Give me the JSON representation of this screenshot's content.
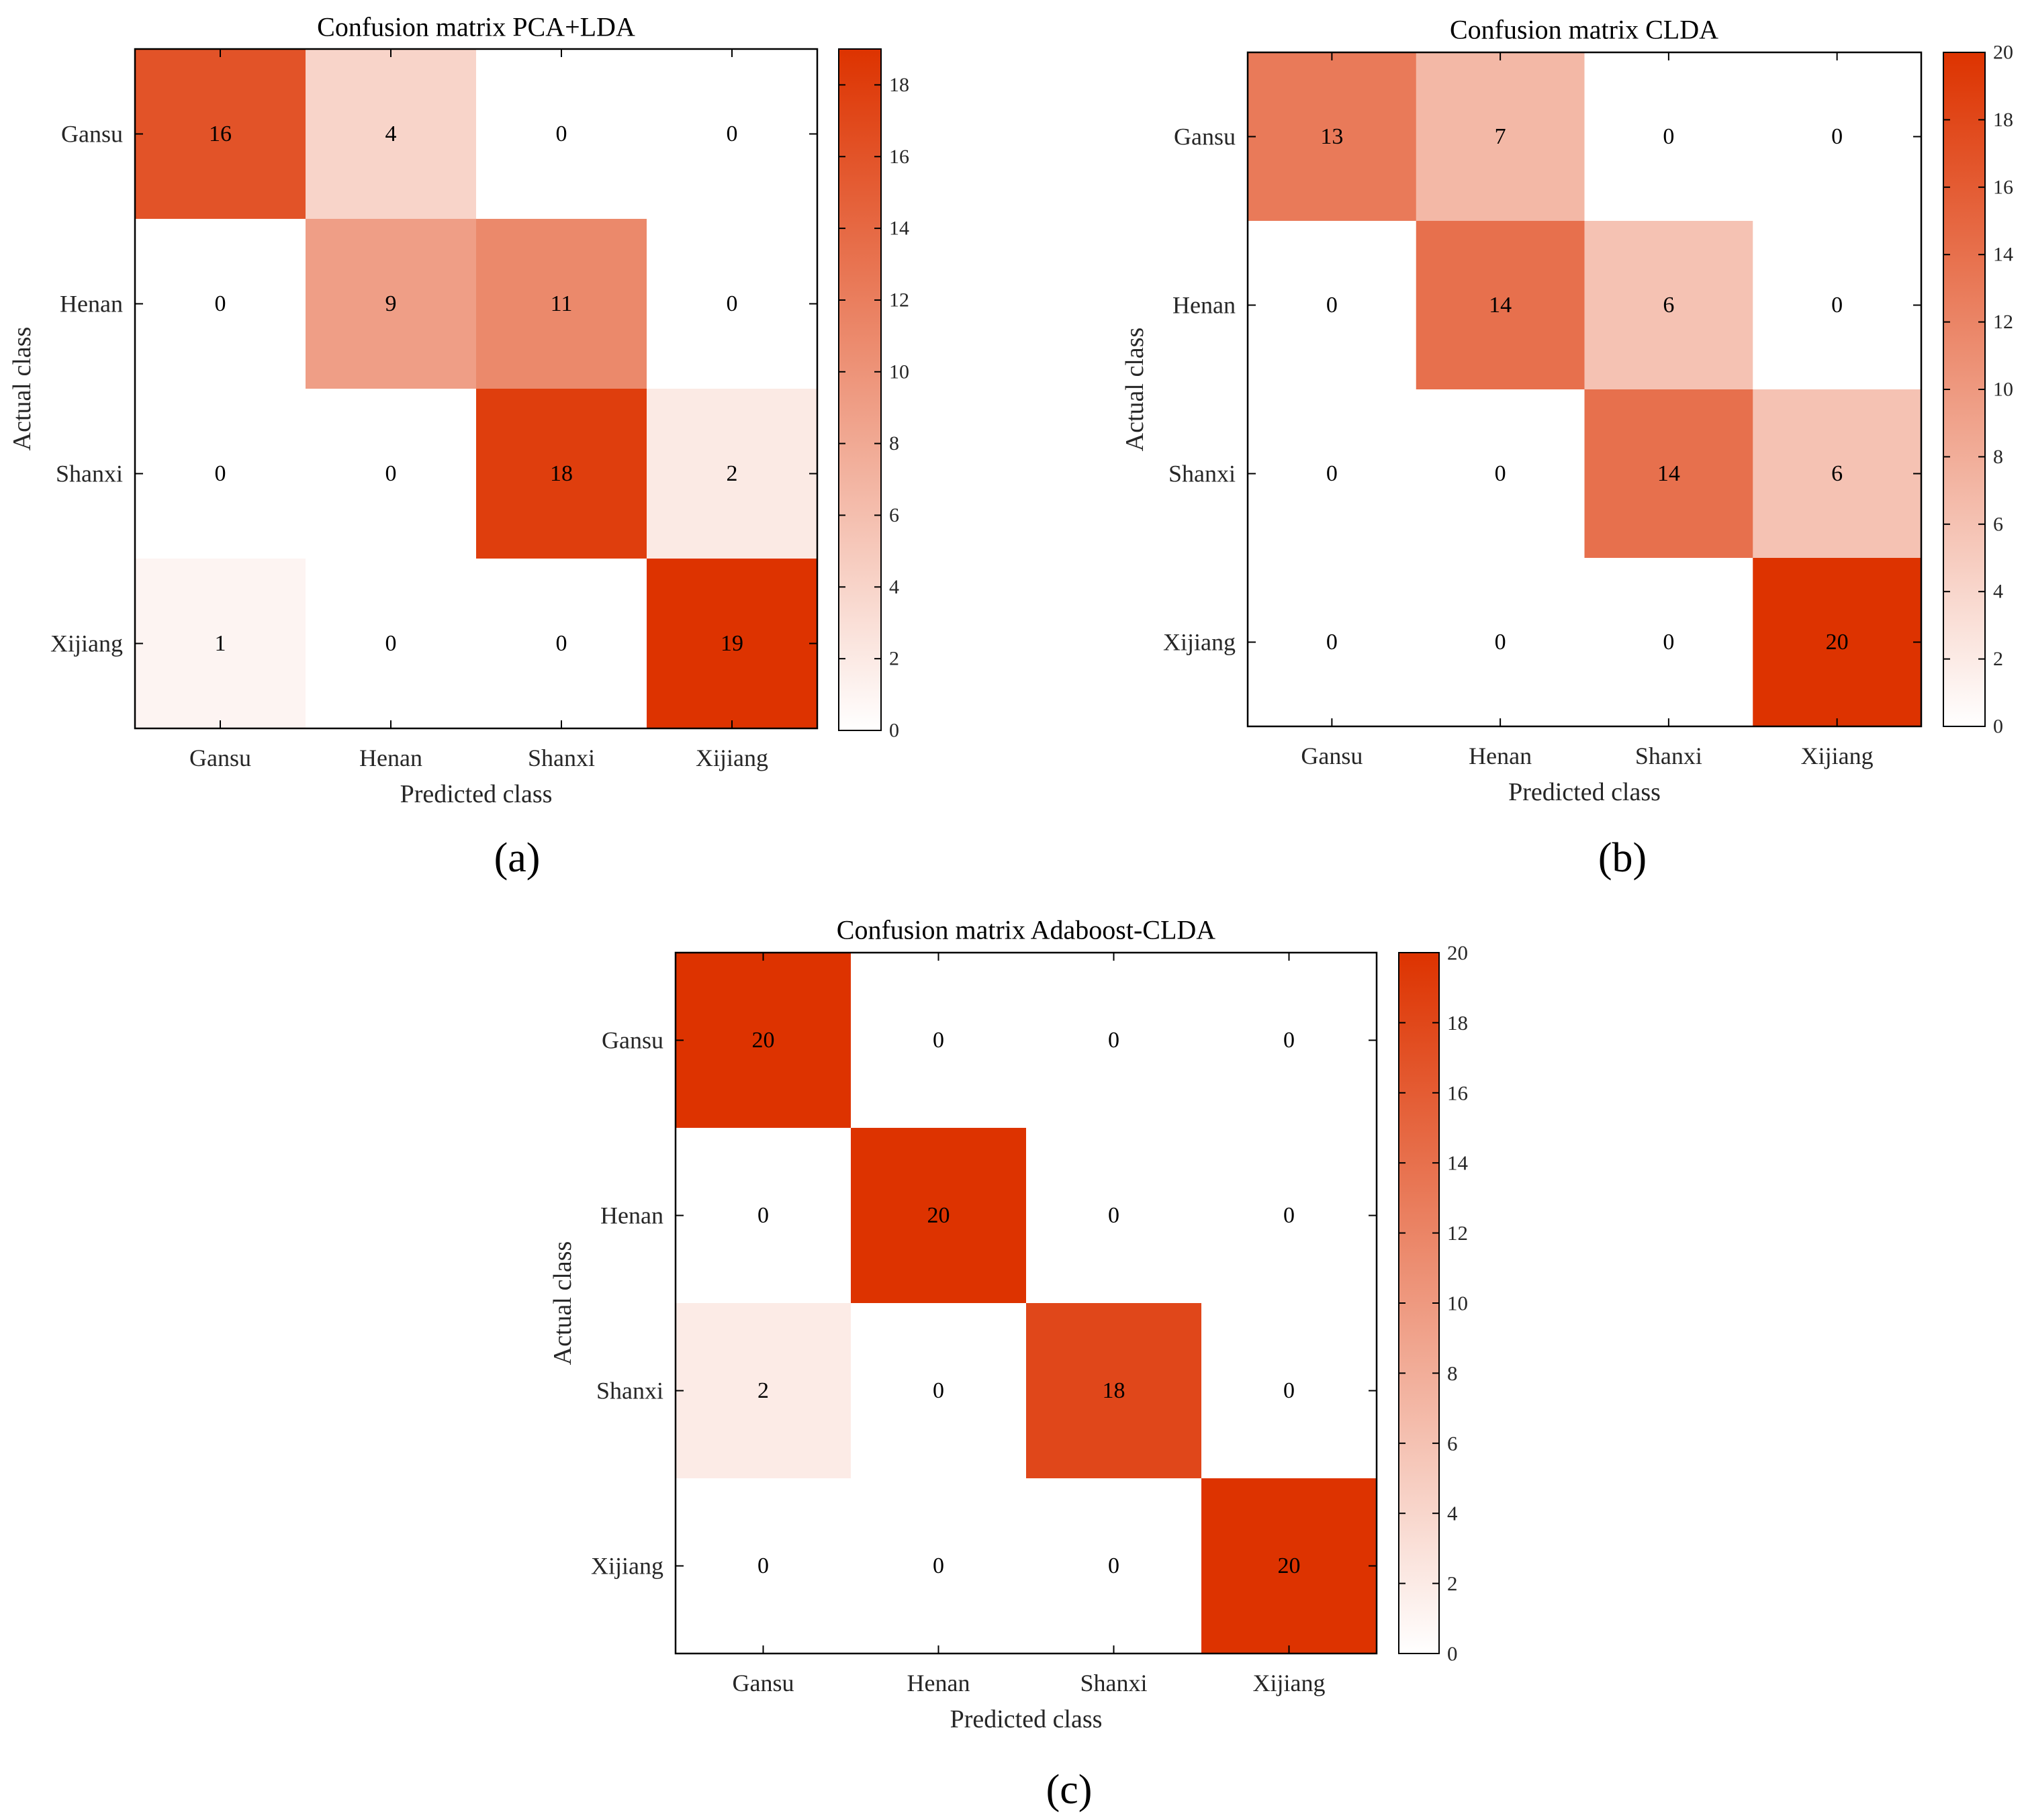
{
  "chart_data": [
    {
      "type": "heatmap",
      "title": "Confusion matrix PCA+LDA",
      "panel_label": "(a)",
      "xlabel": "Predicted class",
      "ylabel": "Actual class",
      "x_categories": [
        "Gansu",
        "Henan",
        "Shanxi",
        "Xijiang"
      ],
      "y_categories": [
        "Gansu",
        "Henan",
        "Shanxi",
        "Xijiang"
      ],
      "values": [
        [
          16,
          4,
          0,
          0
        ],
        [
          0,
          9,
          11,
          0
        ],
        [
          0,
          0,
          18,
          2
        ],
        [
          1,
          0,
          0,
          19
        ]
      ],
      "colorbar": {
        "min": 0,
        "max": 19,
        "ticks": [
          0,
          2,
          4,
          6,
          8,
          10,
          12,
          14,
          16,
          18
        ]
      }
    },
    {
      "type": "heatmap",
      "title": "Confusion matrix CLDA",
      "panel_label": "(b)",
      "xlabel": "Predicted class",
      "ylabel": "Actual class",
      "x_categories": [
        "Gansu",
        "Henan",
        "Shanxi",
        "Xijiang"
      ],
      "y_categories": [
        "Gansu",
        "Henan",
        "Shanxi",
        "Xijiang"
      ],
      "values": [
        [
          13,
          7,
          0,
          0
        ],
        [
          0,
          14,
          6,
          0
        ],
        [
          0,
          0,
          14,
          6
        ],
        [
          0,
          0,
          0,
          20
        ]
      ],
      "colorbar": {
        "min": 0,
        "max": 20,
        "ticks": [
          0,
          2,
          4,
          6,
          8,
          10,
          12,
          14,
          16,
          18,
          20
        ]
      }
    },
    {
      "type": "heatmap",
      "title": "Confusion matrix Adaboost-CLDA",
      "panel_label": "(c)",
      "xlabel": "Predicted class",
      "ylabel": "Actual class",
      "x_categories": [
        "Gansu",
        "Henan",
        "Shanxi",
        "Xijiang"
      ],
      "y_categories": [
        "Gansu",
        "Henan",
        "Shanxi",
        "Xijiang"
      ],
      "values": [
        [
          20,
          0,
          0,
          0
        ],
        [
          0,
          20,
          0,
          0
        ],
        [
          2,
          0,
          18,
          0
        ],
        [
          0,
          0,
          0,
          20
        ]
      ],
      "colorbar": {
        "min": 0,
        "max": 20,
        "ticks": [
          0,
          2,
          4,
          6,
          8,
          10,
          12,
          14,
          16,
          18,
          20
        ]
      }
    }
  ],
  "colors": {
    "low": "#ffffff",
    "high": "#dd3300",
    "axis": "#000000",
    "tick_text": "#262626"
  }
}
